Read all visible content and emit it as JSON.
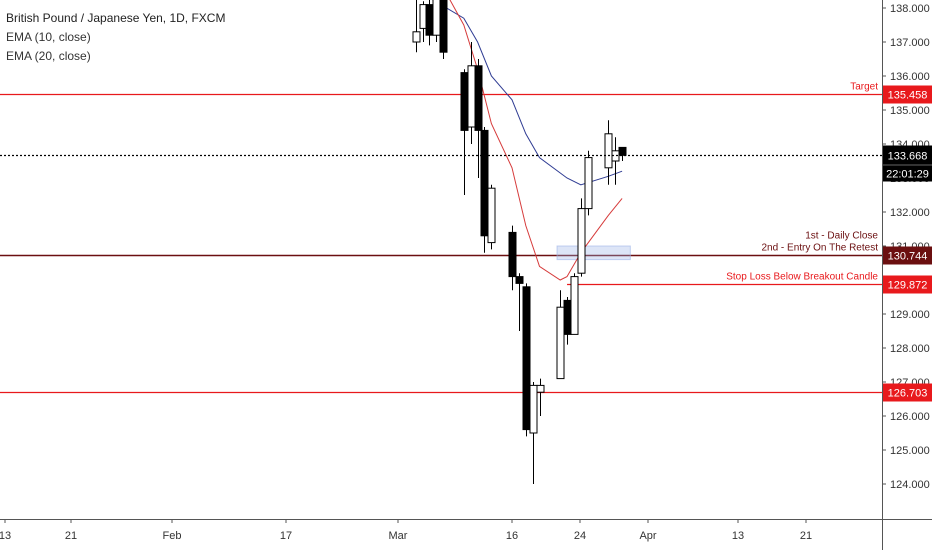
{
  "legend": {
    "symbol": "British Pound / Japanese Yen, 1D, FXCM",
    "ema10": "EMA (10, close)",
    "ema20": "EMA (20, close)"
  },
  "colors": {
    "level_line": "#e8191c",
    "price_tag": "#e8191c",
    "retest_tag": "#6b0f10",
    "ema10": "#2f3c93",
    "ema20": "#d63b3b",
    "bull_body": "#ffffff",
    "bear_body": "#000000"
  },
  "chart_data": {
    "type": "candlestick",
    "title": "British Pound / Japanese Yen, 1D, FXCM",
    "ylim": [
      123.5,
      138.3
    ],
    "price_axis_ticks": [
      "124.000",
      "125.000",
      "126.000",
      "127.000",
      "128.000",
      "129.000",
      "130.000",
      "131.000",
      "132.000",
      "133.000",
      "134.000",
      "135.000",
      "136.000",
      "137.000",
      "138.000"
    ],
    "time_axis_labels": [
      "13",
      "21",
      "Feb",
      "17",
      "Mar",
      "16",
      "24",
      "Apr",
      "13",
      "21"
    ],
    "candles": [
      {
        "date": "2020-03-02",
        "open": 137.0,
        "high": 138.4,
        "low": 136.7,
        "close": 137.3
      },
      {
        "date": "2020-03-03",
        "open": 137.4,
        "high": 138.2,
        "low": 137.0,
        "close": 138.1
      },
      {
        "date": "2020-03-04",
        "open": 138.1,
        "high": 138.4,
        "low": 136.9,
        "close": 137.2
      },
      {
        "date": "2020-03-05",
        "open": 137.2,
        "high": 138.6,
        "low": 137.0,
        "close": 138.3
      },
      {
        "date": "2020-03-06",
        "open": 138.3,
        "high": 138.5,
        "low": 136.5,
        "close": 136.7
      },
      {
        "date": "2020-03-09",
        "open": 136.1,
        "high": 136.2,
        "low": 132.5,
        "close": 134.4
      },
      {
        "date": "2020-03-10",
        "open": 134.5,
        "high": 137.0,
        "low": 134.0,
        "close": 136.3
      },
      {
        "date": "2020-03-11",
        "open": 136.3,
        "high": 136.5,
        "low": 133.0,
        "close": 134.4
      },
      {
        "date": "2020-03-12",
        "open": 134.4,
        "high": 134.5,
        "low": 130.8,
        "close": 131.3
      },
      {
        "date": "2020-03-13",
        "open": 131.1,
        "high": 132.8,
        "low": 130.9,
        "close": 132.7
      },
      {
        "date": "2020-03-16",
        "open": 131.4,
        "high": 131.6,
        "low": 129.7,
        "close": 130.1
      },
      {
        "date": "2020-03-17",
        "open": 130.1,
        "high": 130.2,
        "low": 128.5,
        "close": 129.9
      },
      {
        "date": "2020-03-18",
        "open": 129.8,
        "high": 129.9,
        "low": 125.4,
        "close": 125.6
      },
      {
        "date": "2020-03-19",
        "open": 125.5,
        "high": 127.0,
        "low": 124.0,
        "close": 126.9
      },
      {
        "date": "2020-03-20",
        "open": 126.7,
        "high": 127.1,
        "low": 126.0,
        "close": 126.9
      },
      {
        "date": "2020-03-23",
        "open": 127.1,
        "high": 129.7,
        "low": 127.1,
        "close": 129.2
      },
      {
        "date": "2020-03-24",
        "open": 129.4,
        "high": 129.5,
        "low": 128.1,
        "close": 128.4
      },
      {
        "date": "2020-03-25",
        "open": 128.4,
        "high": 130.2,
        "low": 128.4,
        "close": 130.1
      },
      {
        "date": "2020-03-26",
        "open": 130.2,
        "high": 132.4,
        "low": 130.1,
        "close": 132.1
      },
      {
        "date": "2020-03-27",
        "open": 132.1,
        "high": 133.8,
        "low": 131.9,
        "close": 133.6
      },
      {
        "date": "2020-03-30",
        "open": 133.3,
        "high": 134.7,
        "low": 132.8,
        "close": 134.3
      },
      {
        "date": "2020-03-31",
        "open": 133.5,
        "high": 134.2,
        "low": 132.8,
        "close": 133.8
      },
      {
        "date": "2020-04-01",
        "open": 133.9,
        "high": 133.9,
        "low": 133.5,
        "close": 133.668
      }
    ],
    "series": [
      {
        "name": "EMA (10, close)",
        "points": [
          {
            "date": "2020-02-28",
            "value": 138.6
          },
          {
            "date": "2020-03-04",
            "value": 138.3
          },
          {
            "date": "2020-03-09",
            "value": 137.7
          },
          {
            "date": "2020-03-11",
            "value": 137.0
          },
          {
            "date": "2020-03-13",
            "value": 136.0
          },
          {
            "date": "2020-03-16",
            "value": 135.3
          },
          {
            "date": "2020-03-18",
            "value": 134.3
          },
          {
            "date": "2020-03-20",
            "value": 133.6
          },
          {
            "date": "2020-03-24",
            "value": 133.0
          },
          {
            "date": "2020-03-26",
            "value": 132.8
          },
          {
            "date": "2020-03-30",
            "value": 133.05
          },
          {
            "date": "2020-04-01",
            "value": 133.2
          }
        ]
      },
      {
        "name": "EMA (20, close)",
        "points": [
          {
            "date": "2020-03-06",
            "value": 138.6
          },
          {
            "date": "2020-03-09",
            "value": 137.5
          },
          {
            "date": "2020-03-11",
            "value": 136.2
          },
          {
            "date": "2020-03-13",
            "value": 134.6
          },
          {
            "date": "2020-03-16",
            "value": 133.3
          },
          {
            "date": "2020-03-18",
            "value": 131.6
          },
          {
            "date": "2020-03-20",
            "value": 130.4
          },
          {
            "date": "2020-03-23",
            "value": 130.0
          },
          {
            "date": "2020-03-24",
            "value": 130.1
          },
          {
            "date": "2020-03-26",
            "value": 130.8
          },
          {
            "date": "2020-03-30",
            "value": 131.9
          },
          {
            "date": "2020-04-01",
            "value": 132.4
          }
        ]
      }
    ],
    "levels": [
      {
        "price": 135.458,
        "label": "Target",
        "tag": "135.458",
        "style": "solid"
      },
      {
        "price": 130.744,
        "label": "1st - Daily Close\n2nd - Entry On The Retest",
        "tag": "130.744",
        "style": "solid-dark"
      },
      {
        "price": 129.872,
        "label": "Stop Loss Below Breakout Candle",
        "tag": "129.872",
        "style": "short"
      },
      {
        "price": 126.703,
        "label": "",
        "tag": "126.703",
        "style": "solid"
      }
    ],
    "current_price": {
      "price": 133.668,
      "tag": "133.668",
      "countdown": "22:01:29"
    },
    "annotations": [
      "Target",
      "1st - Daily Close",
      "2nd - Entry On The Retest",
      "Stop Loss Below Breakout Candle"
    ]
  }
}
